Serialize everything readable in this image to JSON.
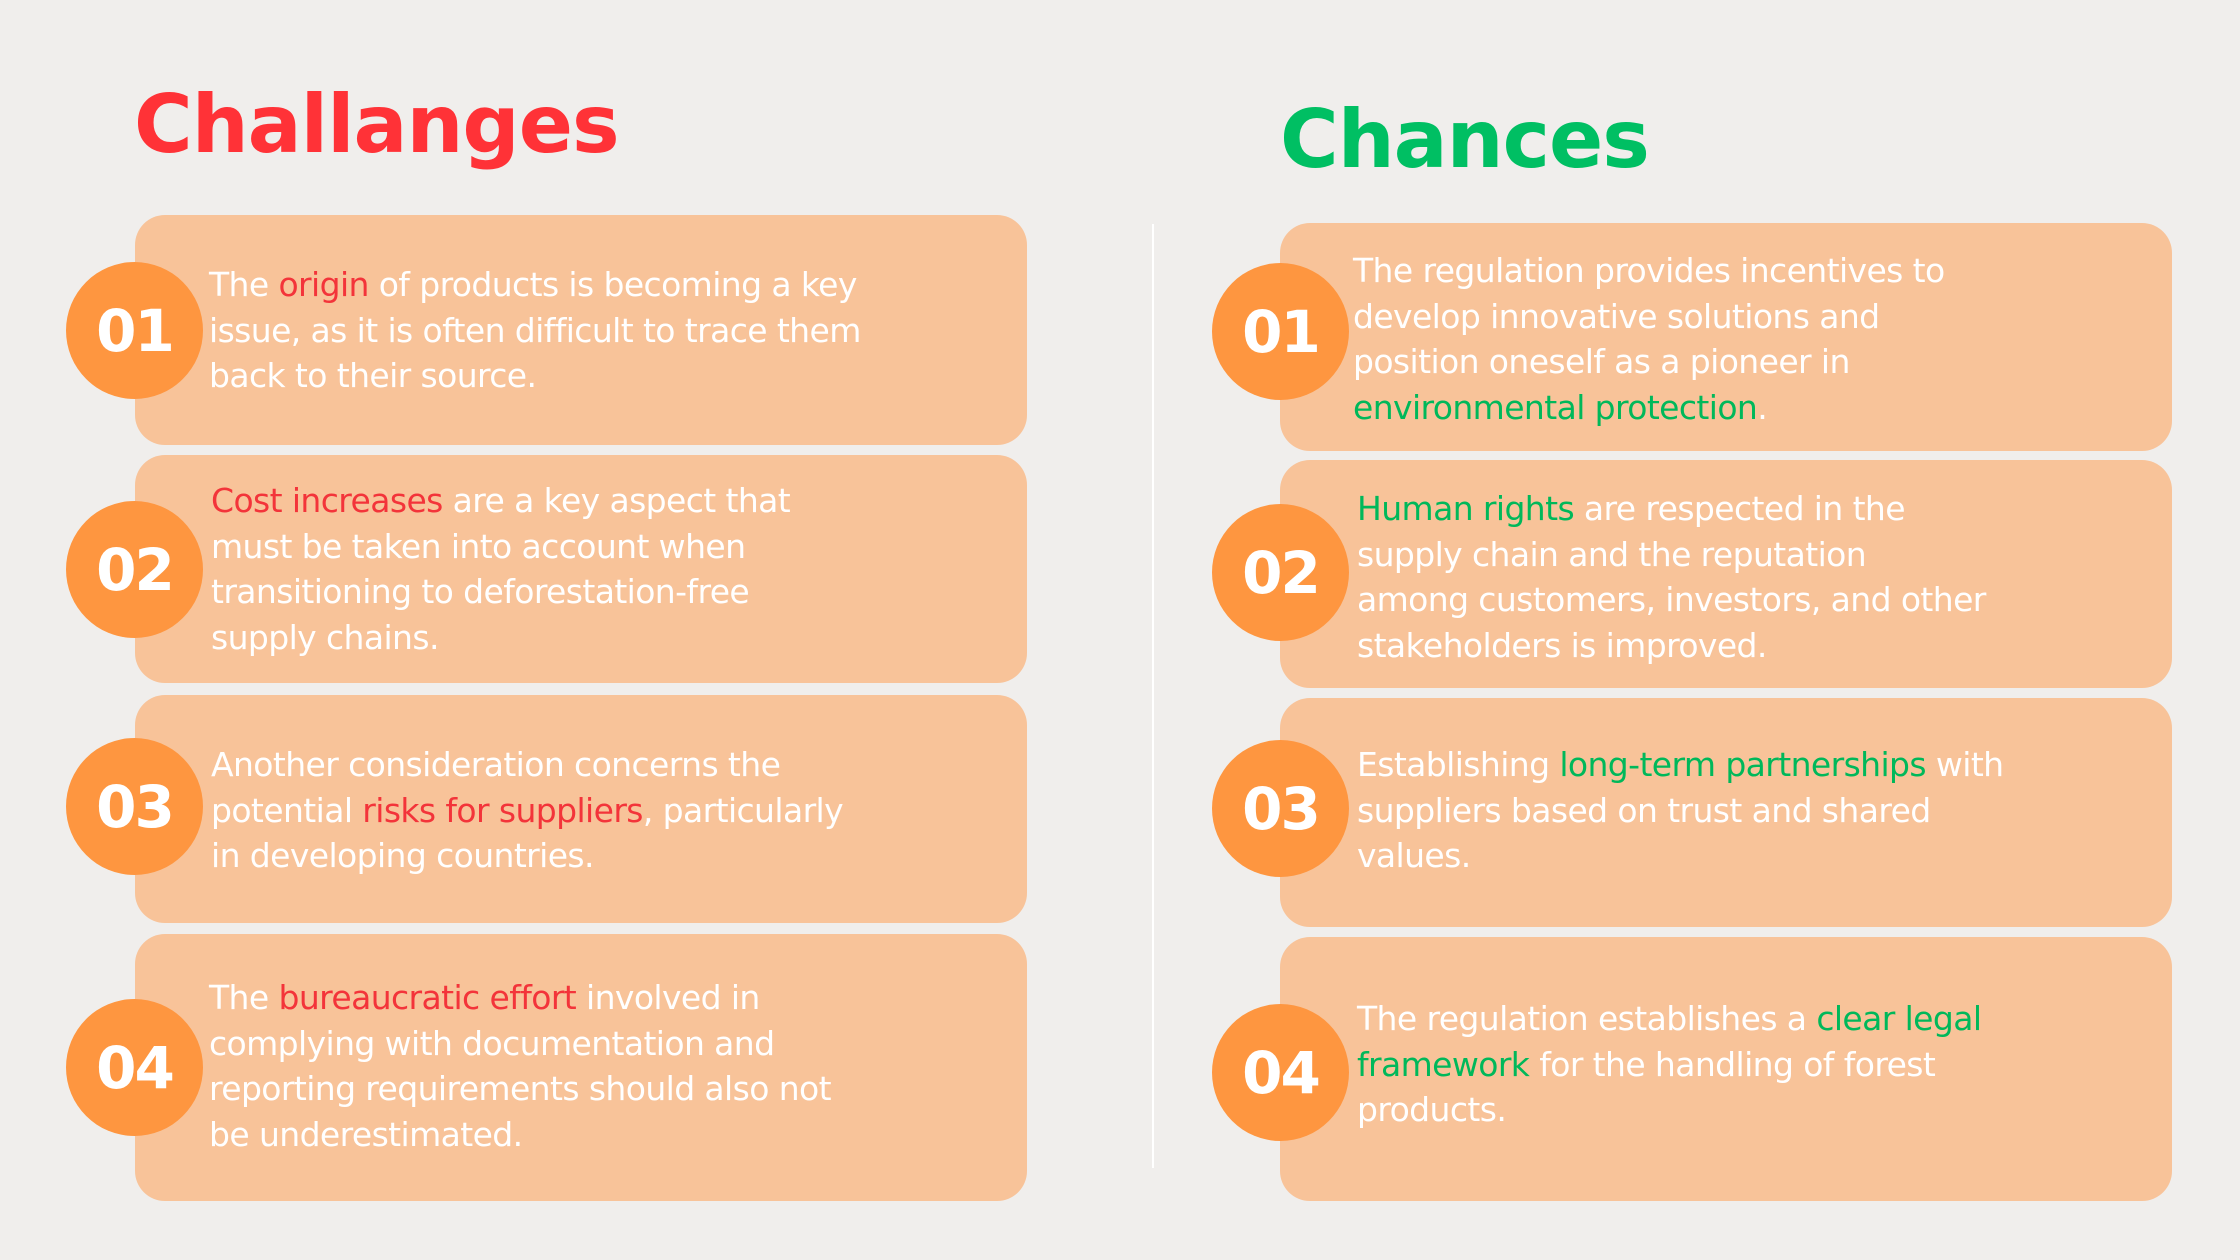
{
  "colors": {
    "background": "#F0EEEC",
    "card": "#F8C399",
    "badge": "#FE9640",
    "challenges_accent": "#FF3237",
    "chances_accent": "#00BF63",
    "text": "#FFFFFF"
  },
  "challenges": {
    "title": "Challanges",
    "items": [
      {
        "number": "01",
        "lines": [
          [
            {
              "t": "The "
            },
            {
              "t": "origin",
              "hl": true
            },
            {
              "t": " of products is becoming a key"
            }
          ],
          [
            {
              "t": "issue, as it is often difficult to trace them"
            }
          ],
          [
            {
              "t": "back to their source."
            }
          ]
        ]
      },
      {
        "number": "02",
        "lines": [
          [
            {
              "t": "Cost increases",
              "hl": true
            },
            {
              "t": " are a key aspect that"
            }
          ],
          [
            {
              "t": "must be taken into account when"
            }
          ],
          [
            {
              "t": "transitioning to deforestation-free"
            }
          ],
          [
            {
              "t": "supply chains."
            }
          ]
        ]
      },
      {
        "number": "03",
        "lines": [
          [
            {
              "t": "Another consideration concerns the"
            }
          ],
          [
            {
              "t": "potential "
            },
            {
              "t": "risks for suppliers",
              "hl": true
            },
            {
              "t": ", particularly"
            }
          ],
          [
            {
              "t": "in developing countries."
            }
          ]
        ]
      },
      {
        "number": "04",
        "lines": [
          [
            {
              "t": "The "
            },
            {
              "t": "bureaucratic effort",
              "hl": true
            },
            {
              "t": " involved in"
            }
          ],
          [
            {
              "t": "complying with documentation and"
            }
          ],
          [
            {
              "t": "reporting requirements should also not"
            }
          ],
          [
            {
              "t": "be underestimated."
            }
          ]
        ]
      }
    ]
  },
  "chances": {
    "title": "Chances",
    "items": [
      {
        "number": "01",
        "lines": [
          [
            {
              "t": "The regulation provides incentives to"
            }
          ],
          [
            {
              "t": "develop innovative solutions and"
            }
          ],
          [
            {
              "t": "position oneself as a pioneer in"
            }
          ],
          [
            {
              "t": "environmental protection",
              "hl": true
            },
            {
              "t": "."
            }
          ]
        ]
      },
      {
        "number": "02",
        "lines": [
          [
            {
              "t": "Human rights",
              "hl": true
            },
            {
              "t": " are respected in the"
            }
          ],
          [
            {
              "t": "supply chain and the reputation"
            }
          ],
          [
            {
              "t": "among customers, investors, and other"
            }
          ],
          [
            {
              "t": "stakeholders is improved."
            }
          ]
        ]
      },
      {
        "number": "03",
        "lines": [
          [
            {
              "t": "Establishing "
            },
            {
              "t": "long-term partnerships",
              "hl": true
            },
            {
              "t": " with"
            }
          ],
          [
            {
              "t": "suppliers based on trust and shared"
            }
          ],
          [
            {
              "t": "values."
            }
          ]
        ]
      },
      {
        "number": "04",
        "lines": [
          [
            {
              "t": "The regulation establishes a "
            },
            {
              "t": "clear legal",
              "hl": true
            }
          ],
          [
            {
              "t": "framework",
              "hl": true
            },
            {
              "t": " for the handling of forest"
            }
          ],
          [
            {
              "t": "products."
            }
          ]
        ]
      }
    ]
  }
}
